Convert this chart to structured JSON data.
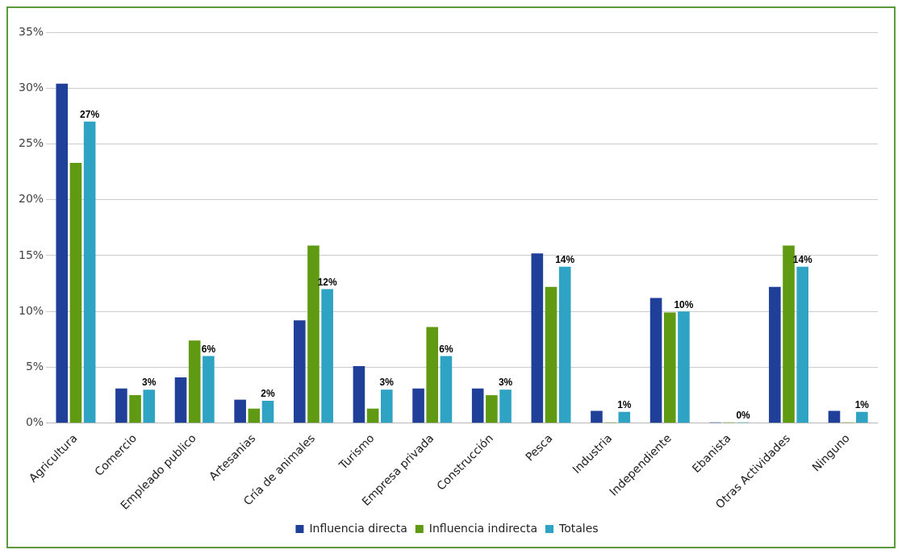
{
  "chart_data": {
    "type": "bar",
    "categories": [
      "Agricultura",
      "Comercio",
      "Empleado publico",
      "Artesanias",
      "Cría de animales",
      "Turismo",
      "Empresa privada",
      "Construcción",
      "Pesca",
      "Industria",
      "Independiente",
      "Ebanista",
      "Otras Actividades",
      "Ninguno"
    ],
    "series": [
      {
        "name": "Influencia directa",
        "color": "#1f3f99",
        "values": [
          30.4,
          3.1,
          4.1,
          2.1,
          9.2,
          5.1,
          3.1,
          3.1,
          15.2,
          1.1,
          11.2,
          0,
          12.2,
          1.1
        ]
      },
      {
        "name": "Influencia indirecta",
        "color": "#5f9a12",
        "values": [
          23.3,
          2.5,
          7.4,
          1.3,
          15.9,
          1.3,
          8.6,
          2.5,
          12.2,
          0,
          9.9,
          0,
          15.9,
          0
        ]
      },
      {
        "name": "Totales",
        "color": "#2fa3c4",
        "values": [
          27,
          3,
          6,
          2,
          12,
          3,
          6,
          3,
          14,
          1,
          10,
          0,
          14,
          1
        ],
        "value_labels": [
          "27%",
          "3%",
          "6%",
          "2%",
          "12%",
          "3%",
          "6%",
          "3%",
          "14%",
          "1%",
          "10%",
          "0%",
          "14%",
          "1%"
        ]
      }
    ],
    "ylim": [
      0,
      35
    ],
    "yticks": [
      {
        "value": 0,
        "label": "0%"
      },
      {
        "value": 5,
        "label": "5%"
      },
      {
        "value": 10,
        "label": "10%"
      },
      {
        "value": 15,
        "label": "15%"
      },
      {
        "value": 20,
        "label": "20%"
      },
      {
        "value": 25,
        "label": "25%"
      },
      {
        "value": 30,
        "label": "30%"
      },
      {
        "value": 35,
        "label": "35%"
      }
    ],
    "grid": "y",
    "legend": "bottom"
  }
}
